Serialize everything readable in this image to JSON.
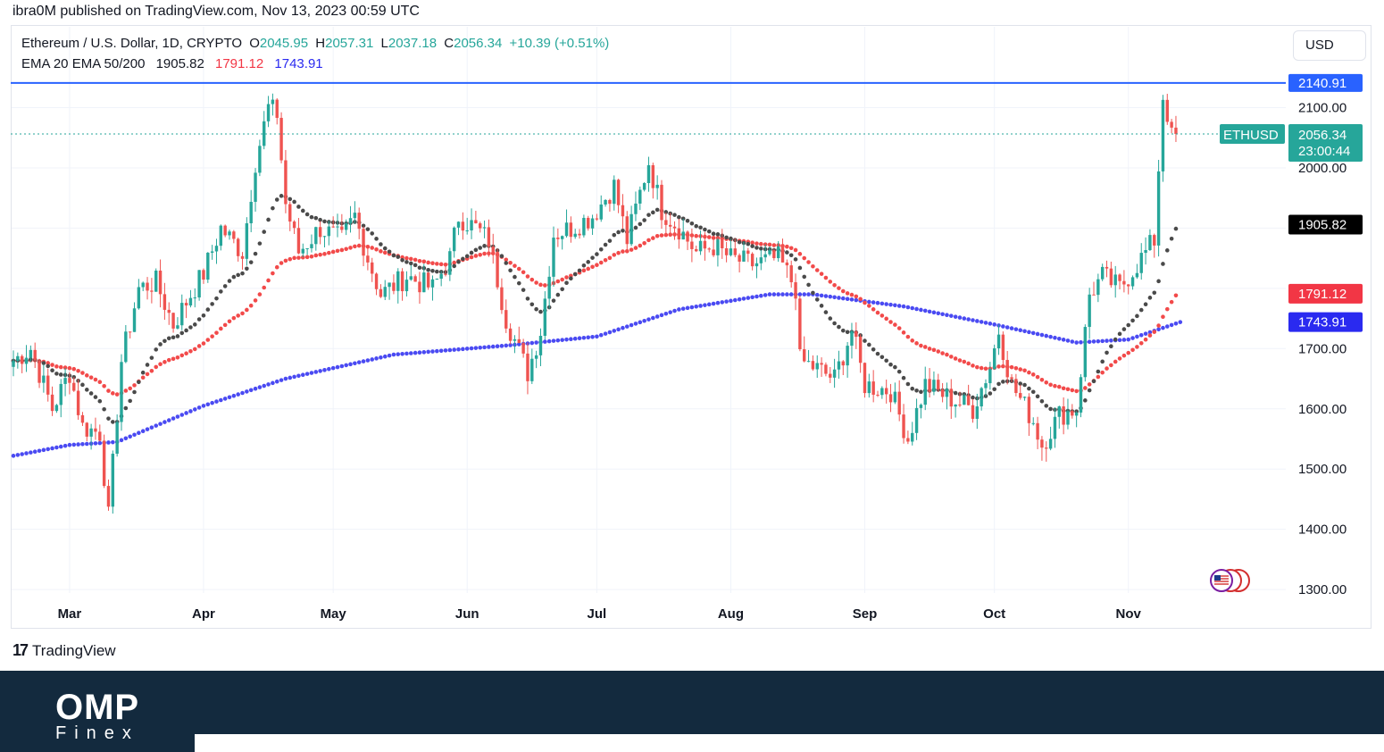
{
  "publish_line": "ibra0M published on TradingView.com, Nov 13, 2023 00:59 UTC",
  "legend": {
    "symbol": "Ethereum / U.S. Dollar, 1D, CRYPTO",
    "o_label": "O",
    "o_value": "2045.95",
    "h_label": "H",
    "h_value": "2057.31",
    "l_label": "L",
    "l_value": "2037.18",
    "c_label": "C",
    "c_value": "2056.34",
    "change": "+10.39 (+0.51%)",
    "indicator": "EMA 20 EMA 50/200",
    "ema20": "1905.82",
    "ema50": "1791.12",
    "ema200": "1743.91"
  },
  "currency_button": "USD",
  "brand": {
    "tradingview": "TradingView",
    "tv_mark": "17",
    "footer_logo": "OMP",
    "footer_sub": "Finex"
  },
  "colors": {
    "up": "#26a69a",
    "down": "#ef5350",
    "ema20": "#4a4a4a",
    "ema50": "#f23645",
    "ema200": "#3a3af0",
    "resistance": "#2962ff",
    "footer": "#132a3e"
  },
  "chart_data": {
    "type": "candlestick",
    "ylim": [
      1300,
      2200
    ],
    "y_ticks": [
      "1300.00",
      "1400.00",
      "1500.00",
      "1600.00",
      "1700.00",
      "2000.00",
      "2100.00"
    ],
    "x_ticks": [
      "Mar",
      "Apr",
      "May",
      "Jun",
      "Jul",
      "Aug",
      "Sep",
      "Oct",
      "Nov"
    ],
    "resistance_level": 2140.91,
    "resistance_label": "2140.91",
    "price_label": {
      "symbol": "ETHUSD",
      "value": "2056.34",
      "countdown": "23:00:44",
      "price": 2056.34
    },
    "ema_labels": [
      {
        "name": "EMA 20",
        "value": "1905.82",
        "price": 1905.82
      },
      {
        "name": "EMA 50",
        "value": "1791.12",
        "price": 1791.12
      },
      {
        "name": "EMA 200",
        "value": "1743.91",
        "price": 1743.91
      }
    ],
    "close_anchors": [
      [
        "2023-02-16",
        1680
      ],
      [
        "2023-02-20",
        1700
      ],
      [
        "2023-02-25",
        1600
      ],
      [
        "2023-03-01",
        1660
      ],
      [
        "2023-03-04",
        1570
      ],
      [
        "2023-03-08",
        1560
      ],
      [
        "2023-03-10",
        1420
      ],
      [
        "2023-03-13",
        1680
      ],
      [
        "2023-03-17",
        1800
      ],
      [
        "2023-03-21",
        1810
      ],
      [
        "2023-03-25",
        1740
      ],
      [
        "2023-03-29",
        1790
      ],
      [
        "2023-04-01",
        1825
      ],
      [
        "2023-04-05",
        1900
      ],
      [
        "2023-04-10",
        1860
      ],
      [
        "2023-04-13",
        2010
      ],
      [
        "2023-04-16",
        2100
      ],
      [
        "2023-04-18",
        2090
      ],
      [
        "2023-04-20",
        1940
      ],
      [
        "2023-04-23",
        1860
      ],
      [
        "2023-04-28",
        1900
      ],
      [
        "2023-05-03",
        1880
      ],
      [
        "2023-05-06",
        1920
      ],
      [
        "2023-05-09",
        1850
      ],
      [
        "2023-05-12",
        1790
      ],
      [
        "2023-05-18",
        1820
      ],
      [
        "2023-05-24",
        1800
      ],
      [
        "2023-05-28",
        1850
      ],
      [
        "2023-05-30",
        1920
      ],
      [
        "2023-06-03",
        1900
      ],
      [
        "2023-06-06",
        1880
      ],
      [
        "2023-06-10",
        1750
      ],
      [
        "2023-06-15",
        1660
      ],
      [
        "2023-06-18",
        1730
      ],
      [
        "2023-06-21",
        1890
      ],
      [
        "2023-06-25",
        1900
      ],
      [
        "2023-06-30",
        1920
      ],
      [
        "2023-07-05",
        1970
      ],
      [
        "2023-07-08",
        1880
      ],
      [
        "2023-07-13",
        2010
      ],
      [
        "2023-07-16",
        1930
      ],
      [
        "2023-07-20",
        1900
      ],
      [
        "2023-07-24",
        1860
      ],
      [
        "2023-07-28",
        1870
      ],
      [
        "2023-08-01",
        1850
      ],
      [
        "2023-08-06",
        1840
      ],
      [
        "2023-08-12",
        1850
      ],
      [
        "2023-08-16",
        1800
      ],
      [
        "2023-08-17",
        1680
      ],
      [
        "2023-08-20",
        1670
      ],
      [
        "2023-08-25",
        1650
      ],
      [
        "2023-08-29",
        1730
      ],
      [
        "2023-09-01",
        1640
      ],
      [
        "2023-09-07",
        1630
      ],
      [
        "2023-09-11",
        1550
      ],
      [
        "2023-09-15",
        1640
      ],
      [
        "2023-09-20",
        1620
      ],
      [
        "2023-09-26",
        1600
      ],
      [
        "2023-09-30",
        1670
      ],
      [
        "2023-10-02",
        1730
      ],
      [
        "2023-10-05",
        1640
      ],
      [
        "2023-10-10",
        1580
      ],
      [
        "2023-10-12",
        1540
      ],
      [
        "2023-10-16",
        1590
      ],
      [
        "2023-10-20",
        1600
      ],
      [
        "2023-10-23",
        1790
      ],
      [
        "2023-10-26",
        1820
      ],
      [
        "2023-10-30",
        1800
      ],
      [
        "2023-11-03",
        1840
      ],
      [
        "2023-11-07",
        1880
      ],
      [
        "2023-11-09",
        2120
      ],
      [
        "2023-11-10",
        2090
      ],
      [
        "2023-11-11",
        2050
      ],
      [
        "2023-11-12",
        2056.34
      ]
    ],
    "ema200_anchors": [
      [
        "2023-02-16",
        1522
      ],
      [
        "2023-03-01",
        1540
      ],
      [
        "2023-03-12",
        1545
      ],
      [
        "2023-04-01",
        1605
      ],
      [
        "2023-04-20",
        1650
      ],
      [
        "2023-05-15",
        1690
      ],
      [
        "2023-06-10",
        1705
      ],
      [
        "2023-07-01",
        1720
      ],
      [
        "2023-07-20",
        1765
      ],
      [
        "2023-08-10",
        1790
      ],
      [
        "2023-08-20",
        1790
      ],
      [
        "2023-09-10",
        1770
      ],
      [
        "2023-10-01",
        1740
      ],
      [
        "2023-10-20",
        1710
      ],
      [
        "2023-11-01",
        1715
      ],
      [
        "2023-11-13",
        1743.91
      ]
    ]
  }
}
